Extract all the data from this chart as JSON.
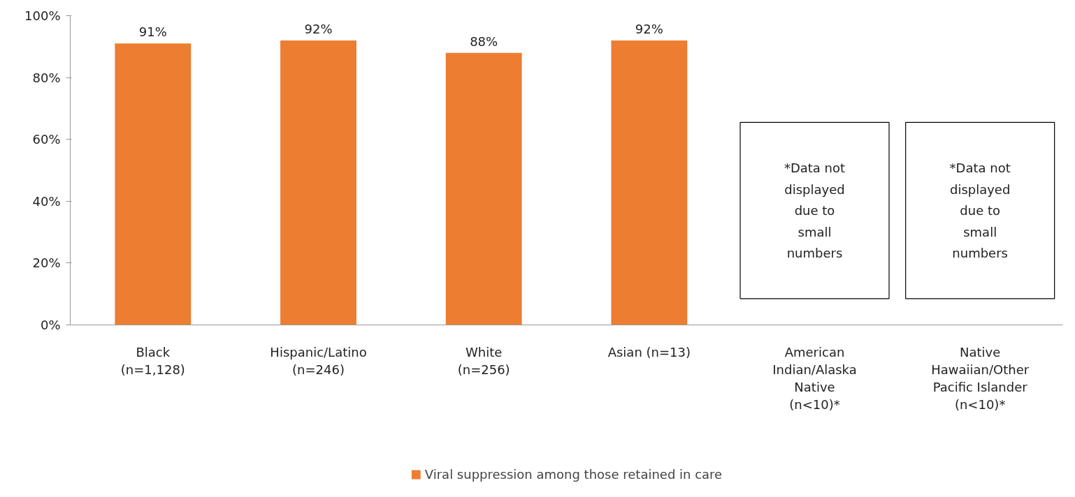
{
  "chart_data": {
    "type": "bar",
    "categories": [
      "Black\n(n=1,128)",
      "Hispanic/Latino\n(n=246)",
      "White\n(n=256)",
      "Asian (n=13)",
      "American\nIndian/Alaska\nNative\n(n<10)*",
      "Native\nHawaiian/Other\nPacific Islander\n(n<10)*"
    ],
    "series": [
      {
        "name": "Viral suppression among those retained in care",
        "color": "#ed7d31",
        "values": [
          91,
          92,
          88,
          92,
          null,
          null
        ]
      }
    ],
    "ylim": [
      0,
      100
    ],
    "yticks": [
      {
        "value": 0,
        "label": "0%"
      },
      {
        "value": 20,
        "label": "20%"
      },
      {
        "value": 40,
        "label": "40%"
      },
      {
        "value": 60,
        "label": "60%"
      },
      {
        "value": 80,
        "label": "80%"
      },
      {
        "value": 100,
        "label": "100%"
      }
    ],
    "value_labels": [
      "91%",
      "92%",
      "88%",
      "92%",
      null,
      null
    ],
    "annotations": [
      "*Data not\ndisplayed\ndue to\nsmall\nnumbers",
      "*Data not\ndisplayed\ndue to\nsmall\nnumbers"
    ],
    "grid": false,
    "legend": "bottom"
  }
}
